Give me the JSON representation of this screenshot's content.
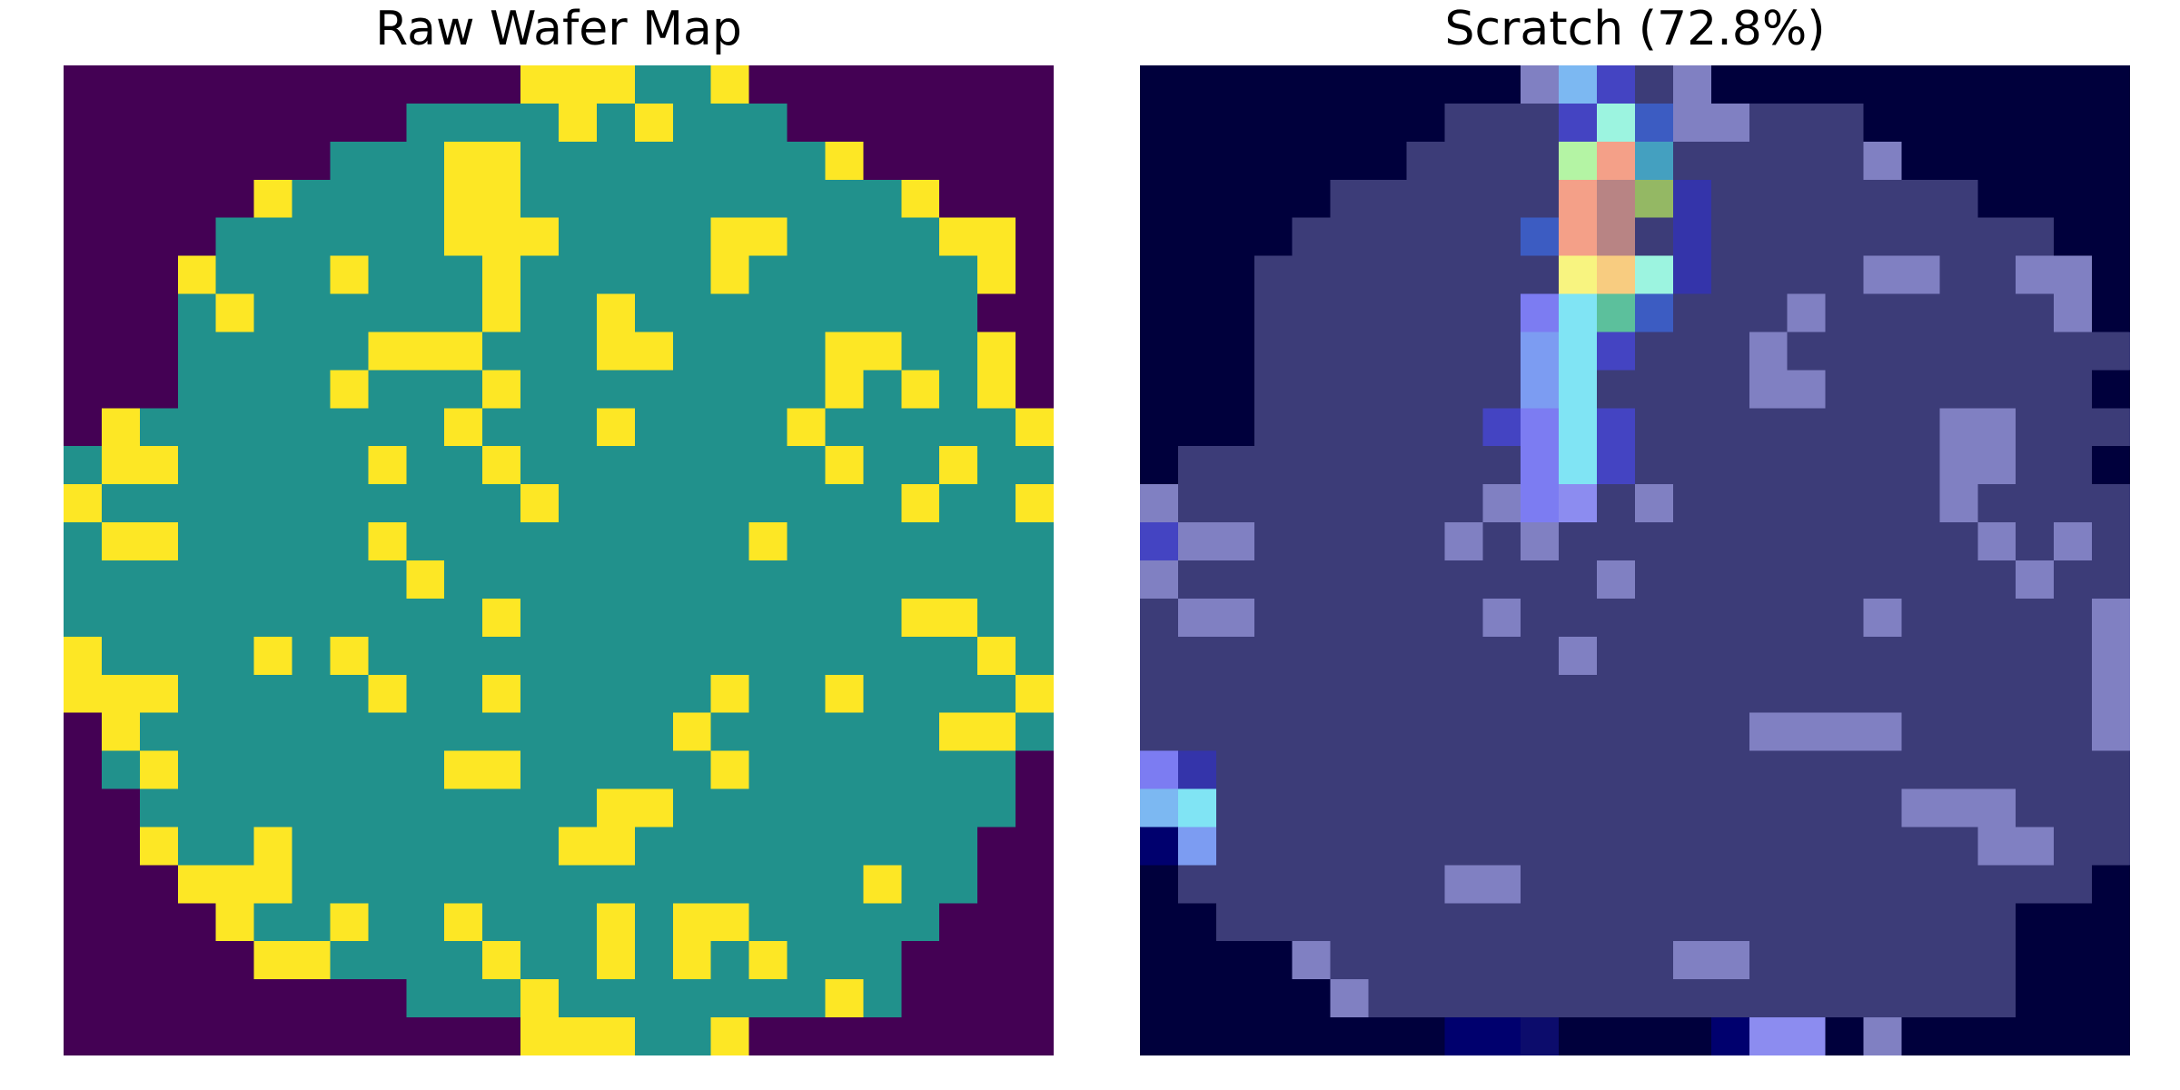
{
  "chart_data": [
    {
      "type": "heatmap",
      "title": "Raw Wafer Map",
      "grid_size": [
        26,
        26
      ],
      "axes": "off",
      "colormap": "viridis",
      "state_colors": {
        "0": "#440154",
        "1": "#21918C",
        "2": "#FDE725"
      },
      "legend": "none",
      "rows": [
        "00000000000022211200000000",
        "00000000011112121110000000",
        "00000001112211111111200000",
        "00000211112211111111112000",
        "00001111112221111221111220",
        "00021112111211111211111120",
        "00012111111211211111111100",
        "00011111222111221111221120",
        "00011112111211111111212120",
        "02111111112111211112111112",
        "12211111211211111111211211",
        "21111111111121111111112112",
        "12211111211111111121111111",
        "11111111121111111111111111",
        "11111111111211111111112211",
        "21111212111111111111111121",
        "22211111211211111211211112",
        "02111111111111112111111221",
        "01211111112211111211111110",
        "00111111111111221111111110",
        "00211211111112211111111100",
        "00022211111111111111121100",
        "00002112112111212211111000",
        "00000221111211212121110000",
        "00000000011121111111210000",
        "00000000000022211200000000"
      ]
    },
    {
      "type": "heatmap",
      "title": "Scratch (72.8%)",
      "grid_size": [
        26,
        26
      ],
      "axes": "off",
      "colormap": "jet",
      "overlay_alpha": 0.5,
      "legend": "none",
      "cell_colors": {
        "a": "#00003C",
        "b": "#000046",
        "c": "#00006E",
        "d": "#3C3C78",
        "e": "#8080C2",
        "f": "#4444C2",
        "g": "#3C5CC2",
        "h": "#7C7CF2",
        "i": "#7C9CF2",
        "j": "#7CB8F2",
        "k": "#80E4F4",
        "l": "#9CF4E0",
        "m": "#B4F4A4",
        "n": "#F4A088",
        "o": "#B88484",
        "p": "#F8F480",
        "q": "#F8CC80",
        "r": "#5CC09C",
        "s": "#94B864",
        "t": "#44A0C0",
        "u": "#3434AA",
        "v": "#0C0C6C",
        "w": "#8C8CF0"
      },
      "rows": [
        "aaaaaaaaaaejfdeaaaaaaaaaaa",
        "aaaaaaaadddflgeedddaaaaaaa",
        "aaaaaaaddddmntdddddeaaaaaa",
        "aaaaaddddddnosudddddddaaaa",
        "aaaaddddddgnodudddddddddaa",
        "aaaddddddddpqluddddeeddeea",
        "aaadddddddhkrgdddeddddddea",
        "aaadddddddikfdddeddddddddd",
        "aaadddddddikddddeeddddddda",
        "aaaddddddfhkfddddddddeeddd",
        "adddddddddhkfddddddddeedda",
        "eddddddddehwdedddddddedddd",
        "feedddddededddddddddddeded",
        "edddddddddddeddddddddddedd",
        "deeddddddedddddddddeddddde",
        "dddddddddddeddddddddddddde",
        "ddddddddddddddddddddddddde",
        "ddddddddddddddddeeeeddddde",
        "hudddddddddddddddddddddddd",
        "jkddddddddddddddddddeeeddd",
        "ciddddddddddddddddddddeedd",
        "adddddddeeddddddddddddddda",
        "aadddddddddddddddddddddaaa",
        "aaaaedddddddddeedddddddaaa",
        "aaaaaedddddddddddddddddaaa",
        "aaaaaaaaccvaaaacwwaeaaaaaa"
      ]
    }
  ]
}
